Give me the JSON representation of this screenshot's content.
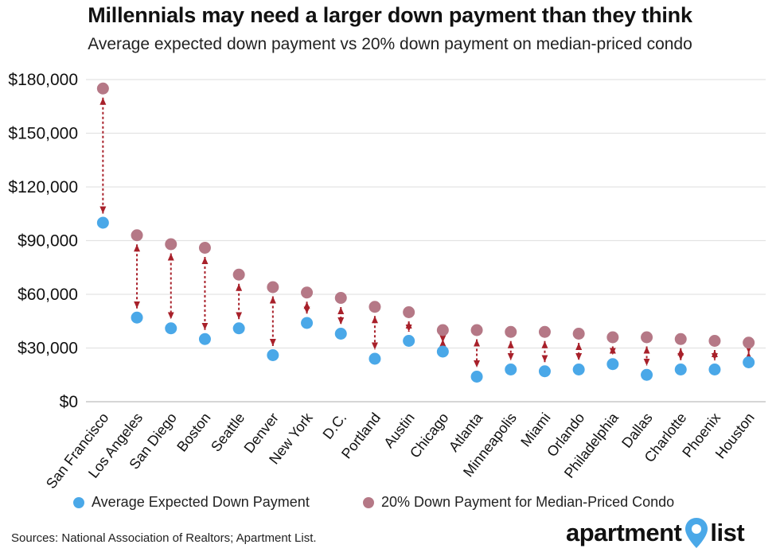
{
  "chart_data": {
    "type": "scatter",
    "title": "Millennials may need a larger down payment than they think",
    "subtitle": "Average expected down payment vs 20% down payment on median-priced condo",
    "categories": [
      "San Francisco",
      "Los Angeles",
      "San Diego",
      "Boston",
      "Seattle",
      "Denver",
      "New York",
      "D.C.",
      "Portland",
      "Austin",
      "Chicago",
      "Atlanta",
      "Minneapolis",
      "Miami",
      "Orlando",
      "Philadelphia",
      "Dallas",
      "Charlotte",
      "Phoenix",
      "Houston"
    ],
    "series": [
      {
        "name": "Average Expected Down Payment",
        "color": "#4aa8e8",
        "values": [
          100000,
          47000,
          41000,
          35000,
          41000,
          26000,
          44000,
          38000,
          24000,
          34000,
          28000,
          14000,
          18000,
          17000,
          18000,
          21000,
          15000,
          18000,
          18000,
          22000
        ]
      },
      {
        "name": "20% Down Payment for Median-Priced Condo",
        "color": "#b57886",
        "values": [
          175000,
          93000,
          88000,
          86000,
          71000,
          64000,
          61000,
          58000,
          53000,
          50000,
          40000,
          40000,
          39000,
          39000,
          38000,
          36000,
          36000,
          35000,
          34000,
          33000
        ]
      }
    ],
    "ylim": [
      0,
      180000
    ],
    "yticks": [
      0,
      30000,
      60000,
      90000,
      120000,
      150000,
      180000
    ],
    "ytick_labels": [
      "$0",
      "$30,000",
      "$60,000",
      "$90,000",
      "$120,000",
      "$150,000",
      "$180,000"
    ],
    "grid": true,
    "connector_color": "#a8202a",
    "legend_position": "bottom"
  },
  "legend": {
    "expected_label": "Average Expected Down Payment",
    "condo_label": "20% Down Payment for Median-Priced Condo"
  },
  "source": "Sources: National Association of Realtors; Apartment List.",
  "logo": {
    "left_text": "apartment",
    "right_text": "list",
    "pin_color": "#4aa8e8"
  }
}
